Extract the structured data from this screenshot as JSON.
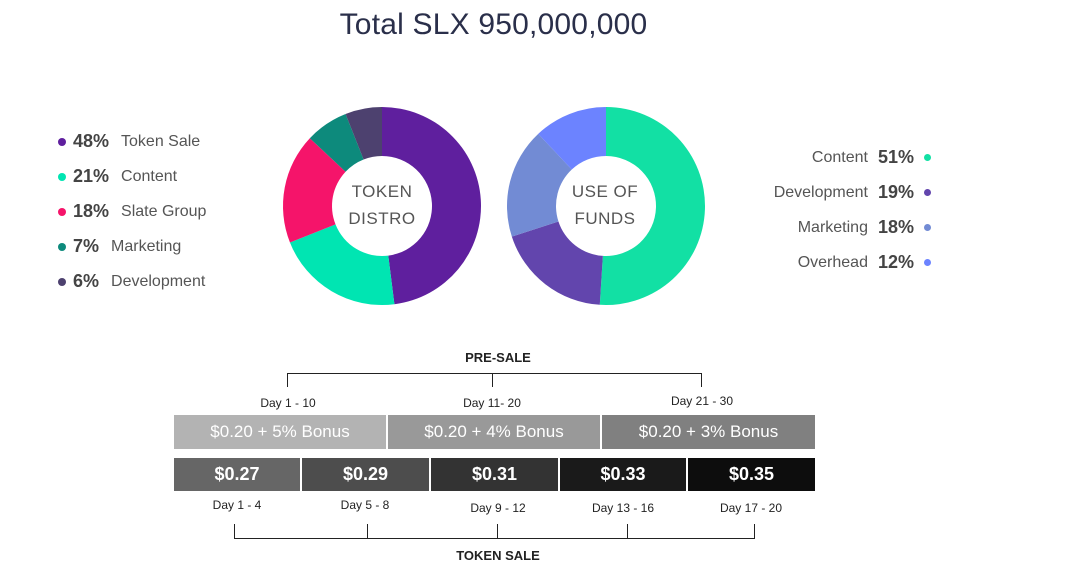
{
  "title": "Total SLX 950,000,000",
  "chart_data": [
    {
      "type": "pie",
      "center_label_line1": "TOKEN",
      "center_label_line2": "DISTRO",
      "slices": [
        {
          "label": "Token Sale",
          "value": 48,
          "pct_text": "48%",
          "color": "#5f1f9e"
        },
        {
          "label": "Content",
          "value": 21,
          "pct_text": "21%",
          "color": "#00e5b2"
        },
        {
          "label": "Slate Group",
          "value": 18,
          "pct_text": "18%",
          "color": "#f5146a"
        },
        {
          "label": "Marketing",
          "value": 7,
          "pct_text": "7%",
          "color": "#0d8a7c"
        },
        {
          "label": "Development",
          "value": 6,
          "pct_text": "6%",
          "color": "#4d416f"
        }
      ]
    },
    {
      "type": "pie",
      "center_label_line1": "USE OF",
      "center_label_line2": "FUNDS",
      "slices": [
        {
          "label": "Content",
          "value": 51,
          "pct_text": "51%",
          "color": "#12e0a4"
        },
        {
          "label": "Development",
          "value": 19,
          "pct_text": "19%",
          "color": "#6245ad"
        },
        {
          "label": "Marketing",
          "value": 18,
          "pct_text": "18%",
          "color": "#728bd4"
        },
        {
          "label": "Overhead",
          "value": 12,
          "pct_text": "12%",
          "color": "#6c83ff"
        }
      ]
    }
  ],
  "presale": {
    "label": "PRE-SALE",
    "day_labels": [
      "Day 1 - 10",
      "Day 11- 20",
      "Day 21 - 30"
    ],
    "bonus_bars": [
      {
        "text": "$0.20 + 5% Bonus",
        "color": "#b3b3b3"
      },
      {
        "text": "$0.20 + 4% Bonus",
        "color": "#999999"
      },
      {
        "text": "$0.20 + 3% Bonus",
        "color": "#808080"
      }
    ]
  },
  "tokensale": {
    "label": "TOKEN SALE",
    "price_bars": [
      {
        "text": "$0.27",
        "color": "#666666"
      },
      {
        "text": "$0.29",
        "color": "#4d4d4d"
      },
      {
        "text": "$0.31",
        "color": "#333333"
      },
      {
        "text": "$0.33",
        "color": "#1a1a1a"
      },
      {
        "text": "$0.35",
        "color": "#0d0d0d"
      }
    ],
    "day_labels": [
      "Day 1 - 4",
      "Day 5 - 8",
      "Day 9 - 12",
      "Day 13 - 16",
      "Day 17 - 20"
    ]
  }
}
